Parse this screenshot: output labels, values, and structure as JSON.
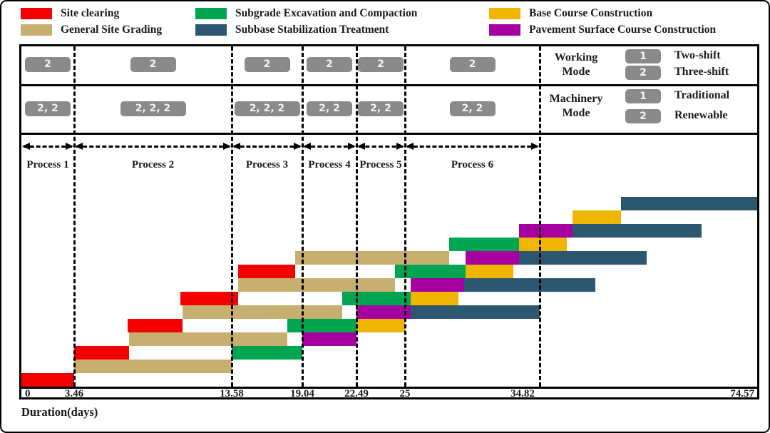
{
  "figure": {
    "axis_title": "Duration(days)"
  },
  "legend": {
    "items": [
      {
        "label": "Site clearing",
        "activity": "clearing",
        "color": "#f50000",
        "col": 0,
        "row": 0
      },
      {
        "label": "General Site Grading",
        "activity": "grading",
        "color": "#c7b06f",
        "col": 0,
        "row": 1
      },
      {
        "label": "Subgrade Excavation and Compaction",
        "activity": "subgrade",
        "color": "#00a551",
        "col": 1,
        "row": 0
      },
      {
        "label": "Subbase Stabilization Treatment",
        "activity": "subbase",
        "color": "#2d5670",
        "col": 1,
        "row": 1
      },
      {
        "label": "Base Course Construction",
        "activity": "base",
        "color": "#f0b500",
        "col": 2,
        "row": 0
      },
      {
        "label": "Pavement Surface Course Construction",
        "activity": "pavement",
        "color": "#a500a0",
        "col": 2,
        "row": 1
      }
    ]
  },
  "working_mode": {
    "title": "Working Mode",
    "boxes": [
      "2",
      "2",
      "2",
      "2",
      "2",
      "2"
    ],
    "legend": [
      {
        "badge": "1",
        "label": "Two-shift"
      },
      {
        "badge": "2",
        "label": "Three-shift"
      }
    ]
  },
  "machinery_mode": {
    "title": "Machinery Mode",
    "boxes": [
      "2, 2",
      "2, 2, 2",
      "2, 2, 2",
      "2, 2",
      "2, 2",
      "2, 2"
    ],
    "legend": [
      {
        "badge": "1",
        "label": "Traditional"
      },
      {
        "badge": "2",
        "label": "Renewable"
      }
    ]
  },
  "chart_data": {
    "type": "gantt",
    "title": "",
    "x_axis": {
      "label": "Duration(days)",
      "tick_labels": [
        "0",
        "3.46",
        "13.58",
        "19.04",
        "22.49",
        "25",
        "34.82",
        "74.57"
      ],
      "tick_days": [
        0,
        3.46,
        13.58,
        19.04,
        22.49,
        25,
        34.82,
        74.57
      ],
      "note": "non-linear scale; axis compressed beyond day 34.82"
    },
    "processes": [
      {
        "name": "Process 1",
        "start": 0,
        "end": 3.46
      },
      {
        "name": "Process 2",
        "start": 3.46,
        "end": 13.58
      },
      {
        "name": "Process 3",
        "start": 13.58,
        "end": 19.04
      },
      {
        "name": "Process 4",
        "start": 19.04,
        "end": 22.49
      },
      {
        "name": "Process 5",
        "start": 22.49,
        "end": 25
      },
      {
        "name": "Process 6",
        "start": 25,
        "end": 34.82
      }
    ],
    "activities": {
      "clearing": {
        "label": "Site clearing",
        "color": "#f50000"
      },
      "grading": {
        "label": "General Site Grading",
        "color": "#c7b06f"
      },
      "subgrade": {
        "label": "Subgrade Excavation and Compaction",
        "color": "#00a551"
      },
      "subbase": {
        "label": "Subbase Stabilization Treatment",
        "color": "#2d5670"
      },
      "base": {
        "label": "Base Course Construction",
        "color": "#f0b500"
      },
      "pavement": {
        "label": "Pavement Surface Course Construction",
        "color": "#a500a0"
      }
    },
    "total_rows": 14,
    "bars": [
      {
        "section": 1,
        "activity": "clearing",
        "row": 1,
        "start": 0,
        "end": 3.46
      },
      {
        "section": 1,
        "activity": "grading",
        "row": 2,
        "start": 3.46,
        "end": 13.58
      },
      {
        "section": 1,
        "activity": "subgrade",
        "row": 3,
        "start": 13.58,
        "end": 19.04
      },
      {
        "section": 1,
        "activity": "pavement",
        "row": 4,
        "start": 19.04,
        "end": 22.49
      },
      {
        "section": 1,
        "activity": "base",
        "row": 5,
        "start": 22.49,
        "end": 25
      },
      {
        "section": 1,
        "activity": "subbase",
        "row": 6,
        "start": 25.4,
        "end": 34.82
      },
      {
        "section": 2,
        "activity": "clearing",
        "row": 3,
        "start": 3.46,
        "end": 7.0
      },
      {
        "section": 2,
        "activity": "grading",
        "row": 4,
        "start": 7.0,
        "end": 17.9
      },
      {
        "section": 2,
        "activity": "subgrade",
        "row": 5,
        "start": 17.9,
        "end": 22.49
      },
      {
        "section": 2,
        "activity": "pavement",
        "row": 6,
        "start": 22.49,
        "end": 25.4
      },
      {
        "section": 2,
        "activity": "base",
        "row": 7,
        "start": 25.4,
        "end": 28.9
      },
      {
        "section": 2,
        "activity": "subbase",
        "row": 8,
        "start": 29.3,
        "end": 45.0
      },
      {
        "section": 3,
        "activity": "clearing",
        "row": 5,
        "start": 6.9,
        "end": 10.4
      },
      {
        "section": 3,
        "activity": "grading",
        "row": 6,
        "start": 10.4,
        "end": 21.6
      },
      {
        "section": 3,
        "activity": "subgrade",
        "row": 7,
        "start": 21.6,
        "end": 25.4
      },
      {
        "section": 3,
        "activity": "pavement",
        "row": 8,
        "start": 25.4,
        "end": 29.3
      },
      {
        "section": 3,
        "activity": "base",
        "row": 9,
        "start": 29.4,
        "end": 32.9
      },
      {
        "section": 3,
        "activity": "subbase",
        "row": 10,
        "start": 33.3,
        "end": 54.4
      },
      {
        "section": 4,
        "activity": "clearing",
        "row": 7,
        "start": 10.3,
        "end": 14.1
      },
      {
        "section": 4,
        "activity": "grading",
        "row": 8,
        "start": 14.1,
        "end": 24.5
      },
      {
        "section": 4,
        "activity": "subgrade",
        "row": 9,
        "start": 24.5,
        "end": 29.4
      },
      {
        "section": 4,
        "activity": "pavement",
        "row": 10,
        "start": 29.4,
        "end": 33.3
      },
      {
        "section": 4,
        "activity": "base",
        "row": 11,
        "start": 33.3,
        "end": 39.8
      },
      {
        "section": 4,
        "activity": "subbase",
        "row": 12,
        "start": 40.8,
        "end": 64.4
      },
      {
        "section": 5,
        "activity": "clearing",
        "row": 9,
        "start": 14.1,
        "end": 18.5
      },
      {
        "section": 5,
        "activity": "grading",
        "row": 10,
        "start": 18.5,
        "end": 28.2
      },
      {
        "section": 5,
        "activity": "subgrade",
        "row": 11,
        "start": 28.2,
        "end": 33.3
      },
      {
        "section": 5,
        "activity": "pavement",
        "row": 12,
        "start": 33.3,
        "end": 40.8
      },
      {
        "section": 5,
        "activity": "base",
        "row": 13,
        "start": 40.8,
        "end": 49.7
      },
      {
        "section": 5,
        "activity": "subbase",
        "row": 14,
        "start": 49.7,
        "end": 74.57
      }
    ]
  }
}
